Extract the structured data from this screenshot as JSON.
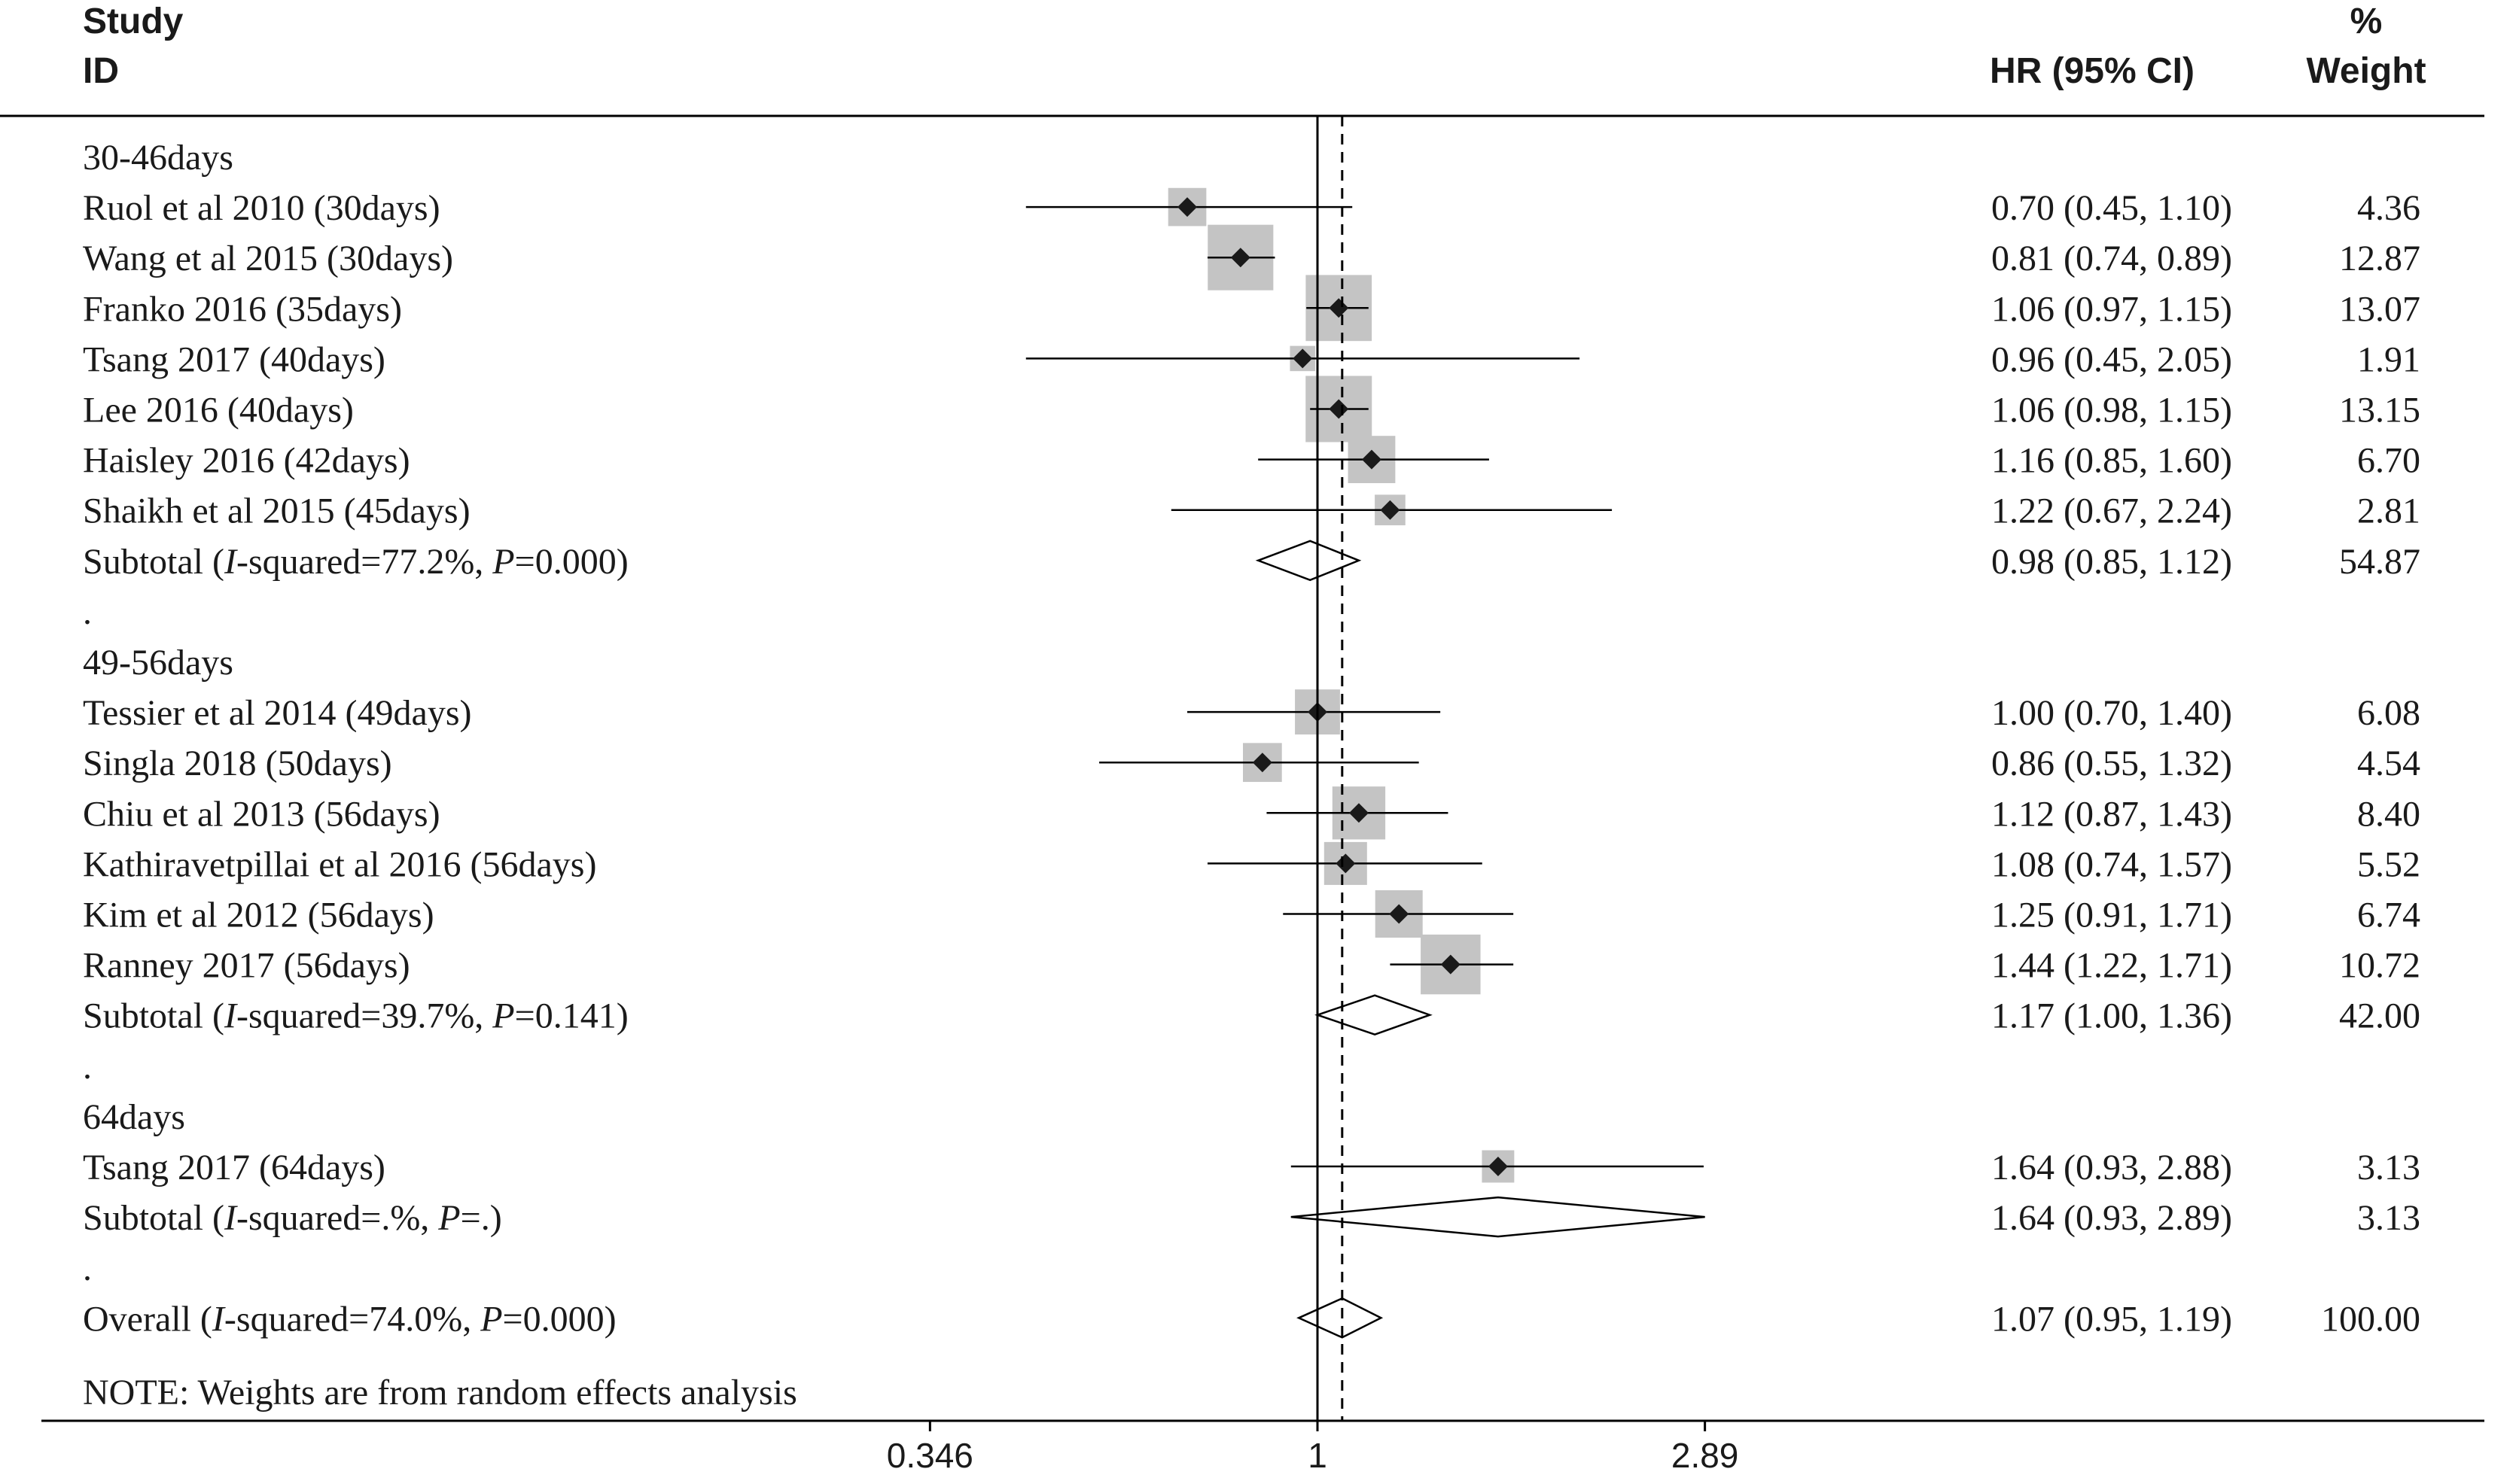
{
  "header": {
    "study_line1": "Study",
    "study_line2": "ID",
    "hr_label": "HR (95% CI)",
    "weight_line1": "%",
    "weight_line2": "Weight"
  },
  "note": "NOTE: Weights are from random effects analysis",
  "chart_data": {
    "type": "forest",
    "x_scale": "log",
    "null_value": 1,
    "overall_estimate": 1.07,
    "x_ticks": [
      {
        "value": 0.346,
        "label": "0.346"
      },
      {
        "value": 1,
        "label": "1"
      },
      {
        "value": 2.89,
        "label": "2.89"
      }
    ],
    "rows": [
      {
        "kind": "group",
        "label": "30-46days"
      },
      {
        "kind": "study",
        "label": "Ruol et al 2010 (30days)",
        "hr": 0.7,
        "lo": 0.45,
        "hi": 1.1,
        "ci_text": "0.70 (0.45, 1.10)",
        "weight": "4.36"
      },
      {
        "kind": "study",
        "label": "Wang et al 2015 (30days)",
        "hr": 0.81,
        "lo": 0.74,
        "hi": 0.89,
        "ci_text": "0.81 (0.74, 0.89)",
        "weight": "12.87"
      },
      {
        "kind": "study",
        "label": "Franko 2016 (35days)",
        "hr": 1.06,
        "lo": 0.97,
        "hi": 1.15,
        "ci_text": "1.06 (0.97, 1.15)",
        "weight": "13.07"
      },
      {
        "kind": "study",
        "label": "Tsang 2017 (40days)",
        "hr": 0.96,
        "lo": 0.45,
        "hi": 2.05,
        "ci_text": "0.96 (0.45, 2.05)",
        "weight": "1.91"
      },
      {
        "kind": "study",
        "label": "Lee 2016 (40days)",
        "hr": 1.06,
        "lo": 0.98,
        "hi": 1.15,
        "ci_text": "1.06 (0.98, 1.15)",
        "weight": "13.15"
      },
      {
        "kind": "study",
        "label": "Haisley 2016 (42days)",
        "hr": 1.16,
        "lo": 0.85,
        "hi": 1.6,
        "ci_text": "1.16 (0.85, 1.60)",
        "weight": "6.70"
      },
      {
        "kind": "study",
        "label": "Shaikh et al 2015 (45days)",
        "hr": 1.22,
        "lo": 0.67,
        "hi": 2.24,
        "ci_text": "1.22 (0.67, 2.24)",
        "weight": "2.81"
      },
      {
        "kind": "subtotal",
        "label": "Subtotal",
        "i2": "77.2%",
        "p": "0.000",
        "hr": 0.98,
        "lo": 0.85,
        "hi": 1.12,
        "ci_text": "0.98 (0.85, 1.12)",
        "weight": "54.87"
      },
      {
        "kind": "spacer",
        "label": "."
      },
      {
        "kind": "group",
        "label": "49-56days"
      },
      {
        "kind": "study",
        "label": "Tessier et al 2014 (49days)",
        "hr": 1.0,
        "lo": 0.7,
        "hi": 1.4,
        "ci_text": "1.00 (0.70, 1.40)",
        "weight": "6.08"
      },
      {
        "kind": "study",
        "label": "Singla 2018 (50days)",
        "hr": 0.86,
        "lo": 0.55,
        "hi": 1.32,
        "ci_text": "0.86 (0.55, 1.32)",
        "weight": "4.54"
      },
      {
        "kind": "study",
        "label": "Chiu et al 2013 (56days)",
        "hr": 1.12,
        "lo": 0.87,
        "hi": 1.43,
        "ci_text": "1.12 (0.87, 1.43)",
        "weight": "8.40"
      },
      {
        "kind": "study",
        "label": "Kathiravetpillai et al 2016 (56days)",
        "hr": 1.08,
        "lo": 0.74,
        "hi": 1.57,
        "ci_text": "1.08 (0.74, 1.57)",
        "weight": "5.52"
      },
      {
        "kind": "study",
        "label": "Kim et al 2012 (56days)",
        "hr": 1.25,
        "lo": 0.91,
        "hi": 1.71,
        "ci_text": "1.25 (0.91, 1.71)",
        "weight": "6.74"
      },
      {
        "kind": "study",
        "label": "Ranney 2017 (56days)",
        "hr": 1.44,
        "lo": 1.22,
        "hi": 1.71,
        "ci_text": "1.44 (1.22, 1.71)",
        "weight": "10.72"
      },
      {
        "kind": "subtotal",
        "label": "Subtotal",
        "i2": "39.7%",
        "p": "0.141",
        "hr": 1.17,
        "lo": 1.0,
        "hi": 1.36,
        "ci_text": "1.17 (1.00, 1.36)",
        "weight": "42.00"
      },
      {
        "kind": "spacer",
        "label": "."
      },
      {
        "kind": "group",
        "label": "64days"
      },
      {
        "kind": "study",
        "label": "Tsang 2017 (64days)",
        "hr": 1.64,
        "lo": 0.93,
        "hi": 2.88,
        "ci_text": "1.64 (0.93, 2.88)",
        "weight": "3.13"
      },
      {
        "kind": "subtotal",
        "label": "Subtotal",
        "i2": ".%",
        "p": ".",
        "hr": 1.64,
        "lo": 0.93,
        "hi": 2.89,
        "ci_text": "1.64 (0.93, 2.89)",
        "weight": "3.13"
      },
      {
        "kind": "spacer",
        "label": "."
      },
      {
        "kind": "overall",
        "label": "Overall",
        "i2": "74.0%",
        "p": "0.000",
        "hr": 1.07,
        "lo": 0.95,
        "hi": 1.19,
        "ci_text": "1.07 (0.95, 1.19)",
        "weight": "100.00"
      }
    ]
  }
}
